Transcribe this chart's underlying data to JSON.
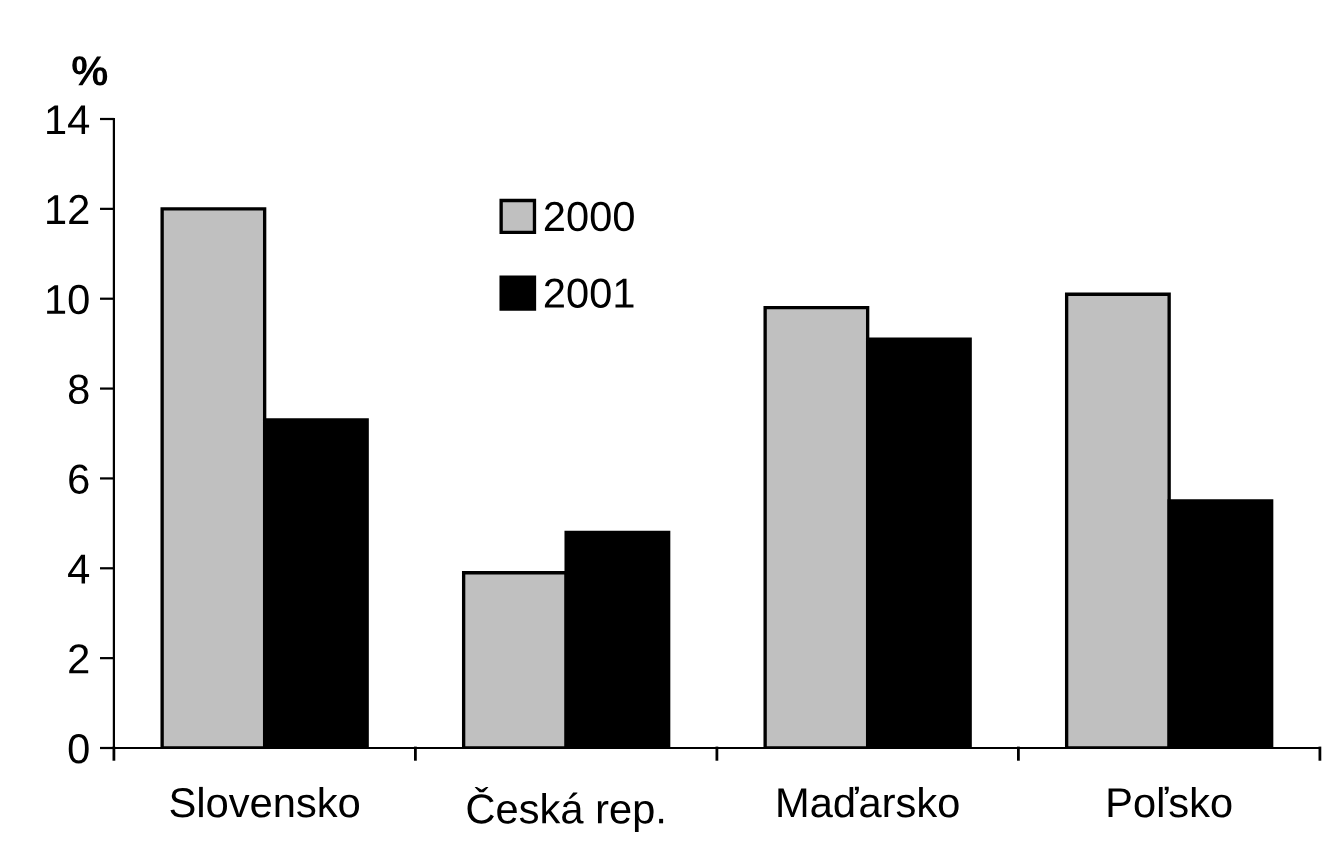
{
  "chart_data": {
    "type": "bar",
    "ylabel": "%",
    "categories": [
      "Slovensko",
      "Česká rep.",
      "Maďarsko",
      "Poľsko"
    ],
    "series": [
      {
        "name": "2000",
        "color": "#c0c0c0",
        "values": [
          12.0,
          3.9,
          9.8,
          10.1
        ]
      },
      {
        "name": "2001",
        "color": "#000000",
        "values": [
          7.3,
          4.8,
          9.1,
          5.5
        ]
      }
    ],
    "ylim": [
      0,
      14
    ],
    "yticks": [
      0,
      2,
      4,
      6,
      8,
      10,
      12,
      14
    ],
    "grid": false,
    "legend": "top"
  }
}
